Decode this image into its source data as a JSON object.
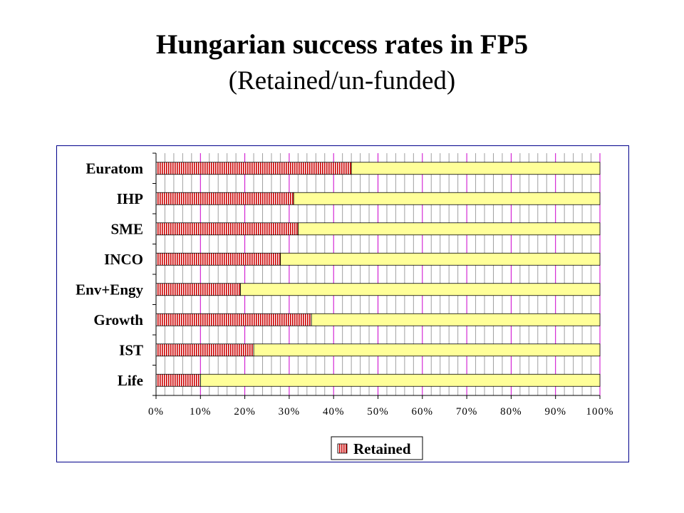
{
  "title": "Hungarian success rates in FP5",
  "subtitle": "(Retained/un-funded)",
  "chart_data": {
    "type": "bar",
    "orientation": "horizontal",
    "stacked": "100%",
    "categories": [
      "Euratom",
      "IHP",
      "SME",
      "INCO",
      "Env+Engy",
      "Growth",
      "IST",
      "Life"
    ],
    "series": [
      {
        "name": "Retained",
        "values": [
          44,
          31,
          32,
          28,
          19,
          35,
          22,
          10
        ],
        "color": "#cc0000",
        "pattern": "vertical-stripes"
      },
      {
        "values": [
          56,
          69,
          68,
          72,
          81,
          65,
          78,
          90
        ],
        "color": "#ffff99"
      }
    ],
    "xlim": [
      0,
      100
    ],
    "x_ticks": [
      "0%",
      "10%",
      "20%",
      "30%",
      "40%",
      "50%",
      "60%",
      "70%",
      "80%",
      "90%",
      "100%"
    ],
    "grid": {
      "major_color": "#cc00cc",
      "minor_color": "#a0a0a0"
    },
    "legend_position": "bottom-right"
  }
}
